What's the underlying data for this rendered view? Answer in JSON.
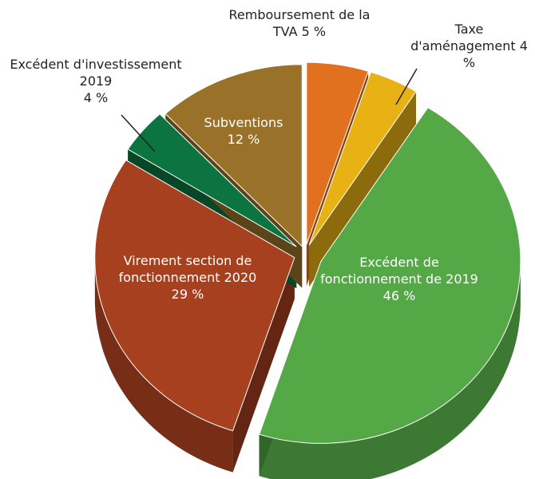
{
  "chart_data": {
    "type": "pie",
    "categories": [
      "Remboursement de la TVA",
      "Taxe d'aménagement",
      "Excédent de fonctionnement de 2019",
      "Virement section de fonctionnement 2020",
      "Excédent d'investissement 2019",
      "Subventions"
    ],
    "values": [
      5,
      4,
      46,
      29,
      4,
      12
    ],
    "value_labels": [
      "5 %",
      "4 %",
      "46 %",
      "29 %",
      "4 %",
      "12 %"
    ],
    "colors": [
      "#e2711f",
      "#e9b214",
      "#54a846",
      "#a6401f",
      "#0b7440",
      "#9a7129"
    ]
  }
}
